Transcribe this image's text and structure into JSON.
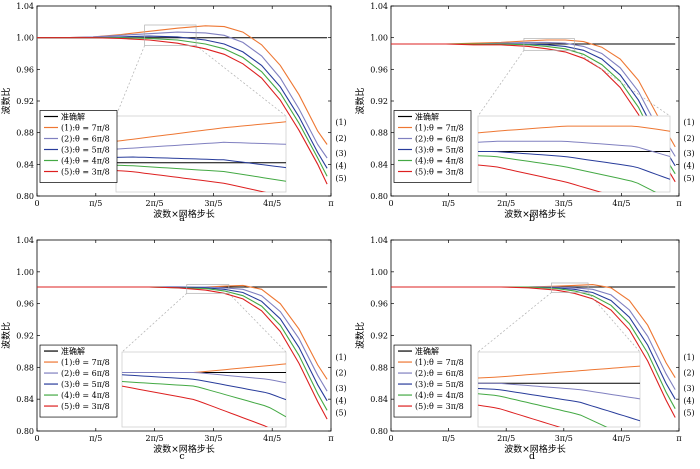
{
  "figure": {
    "curve_names": [
      "准确解",
      "(1):θ = 7π/8",
      "(2):θ = 6π/8",
      "(3):θ = 5π/8",
      "(4):θ = 4π/8",
      "(5):θ = 3π/8"
    ],
    "curve_colors": [
      "#000000",
      "#ee7733",
      "#8080c0",
      "#283c9b",
      "#44a944",
      "#dd2020"
    ],
    "end_labels": [
      "(1)",
      "(2)",
      "(3)",
      "(4)",
      "(5)"
    ]
  },
  "chart_data": [
    {
      "type": "line",
      "panel_label": "a",
      "xlabel": "波数×网格步长",
      "ylabel": "波数比",
      "xlim": [
        0,
        3.14159
      ],
      "ylim": [
        0.8,
        1.04
      ],
      "xtick_values": [
        0,
        0.6283,
        1.2566,
        1.885,
        2.5133,
        3.1416
      ],
      "xtick_labels": [
        "0",
        "π/5",
        "2π/5",
        "3π/5",
        "4π/5",
        "π"
      ],
      "ytick_values": [
        0.8,
        0.84,
        0.88,
        0.92,
        0.96,
        1.0,
        1.04
      ],
      "ytick_labels": [
        "0.80",
        "0.84",
        "0.88",
        "0.92",
        "0.96",
        "1.00",
        "1.04"
      ],
      "x": [
        0,
        0.3,
        0.6,
        0.9,
        1.2,
        1.5,
        1.8,
        2.0,
        2.2,
        2.4,
        2.6,
        2.8,
        3.0,
        3.1
      ],
      "series": [
        {
          "name": "准确解",
          "values": [
            1.0,
            1.0,
            1.0,
            1.0,
            1.0,
            1.0,
            1.0,
            1.0,
            1.0,
            1.0,
            1.0,
            1.0,
            1.0,
            1.0
          ]
        },
        {
          "name": "(1):θ = 7π/8",
          "values": [
            1.0,
            1.0,
            1.001,
            1.004,
            1.008,
            1.012,
            1.015,
            1.014,
            1.007,
            0.991,
            0.965,
            0.928,
            0.882,
            0.865
          ]
        },
        {
          "name": "(2):θ = 6π/8",
          "values": [
            1.0,
            1.0,
            1.001,
            1.003,
            1.005,
            1.007,
            1.006,
            1.003,
            0.994,
            0.977,
            0.949,
            0.91,
            0.865,
            0.848
          ]
        },
        {
          "name": "(3):θ = 5π/8",
          "values": [
            1.0,
            1.0,
            1.0,
            1.001,
            1.002,
            1.001,
            0.997,
            0.992,
            0.982,
            0.965,
            0.938,
            0.9,
            0.855,
            0.835
          ]
        },
        {
          "name": "(4):θ = 4π/8",
          "values": [
            1.0,
            1.0,
            1.0,
            1.0,
            0.999,
            0.997,
            0.992,
            0.986,
            0.975,
            0.957,
            0.93,
            0.892,
            0.848,
            0.825
          ]
        },
        {
          "name": "(5):θ = 3π/8",
          "values": [
            1.0,
            1.0,
            1.0,
            0.999,
            0.997,
            0.993,
            0.986,
            0.979,
            0.967,
            0.949,
            0.921,
            0.883,
            0.84,
            0.815
          ]
        }
      ],
      "inset_xlim": [
        1.15,
        1.7
      ],
      "inset_ylim": [
        0.99,
        1.016
      ]
    },
    {
      "type": "line",
      "panel_label": "b",
      "xlabel": "波数×网格步长",
      "ylabel": "波数比",
      "xlim": [
        0,
        3.14159
      ],
      "ylim": [
        0.8,
        1.04
      ],
      "xtick_values": [
        0,
        0.6283,
        1.2566,
        1.885,
        2.5133,
        3.1416
      ],
      "xtick_labels": [
        "0",
        "π/5",
        "2π/5",
        "3π/5",
        "4π/5",
        "π"
      ],
      "ytick_values": [
        0.8,
        0.84,
        0.88,
        0.92,
        0.96,
        1.0,
        1.04
      ],
      "ytick_labels": [
        "0.80",
        "0.84",
        "0.88",
        "0.92",
        "0.96",
        "1.00",
        "1.04"
      ],
      "x": [
        0,
        0.3,
        0.6,
        0.9,
        1.2,
        1.5,
        1.7,
        1.9,
        2.1,
        2.3,
        2.5,
        2.7,
        2.9,
        3.1
      ],
      "series": [
        {
          "name": "准确解",
          "values": [
            0.992,
            0.992,
            0.992,
            0.992,
            0.992,
            0.992,
            0.992,
            0.992,
            0.992,
            0.992,
            0.992,
            0.992,
            0.992,
            0.992
          ]
        },
        {
          "name": "(1):θ = 7π/8",
          "values": [
            0.992,
            0.992,
            0.992,
            0.993,
            0.994,
            0.996,
            0.997,
            0.997,
            0.995,
            0.988,
            0.973,
            0.946,
            0.903,
            0.862
          ]
        },
        {
          "name": "(2):θ = 6π/8",
          "values": [
            0.992,
            0.992,
            0.992,
            0.992,
            0.993,
            0.994,
            0.994,
            0.993,
            0.989,
            0.98,
            0.962,
            0.932,
            0.888,
            0.85
          ]
        },
        {
          "name": "(3):θ = 5π/8",
          "values": [
            0.992,
            0.992,
            0.992,
            0.992,
            0.992,
            0.992,
            0.991,
            0.989,
            0.984,
            0.973,
            0.953,
            0.921,
            0.876,
            0.838
          ]
        },
        {
          "name": "(4):θ = 4π/8",
          "values": [
            0.992,
            0.992,
            0.992,
            0.992,
            0.992,
            0.991,
            0.989,
            0.986,
            0.979,
            0.966,
            0.945,
            0.912,
            0.866,
            0.828
          ]
        },
        {
          "name": "(5):θ = 3π/8",
          "values": [
            0.992,
            0.992,
            0.992,
            0.991,
            0.991,
            0.989,
            0.986,
            0.982,
            0.974,
            0.96,
            0.937,
            0.903,
            0.857,
            0.818
          ]
        }
      ],
      "inset_xlim": [
        1.45,
        2.0
      ],
      "inset_ylim": [
        0.984,
        0.999
      ]
    },
    {
      "type": "line",
      "panel_label": "c",
      "xlabel": "波数×网格步长",
      "ylabel": "波数比",
      "xlim": [
        0,
        3.14159
      ],
      "ylim": [
        0.8,
        1.04
      ],
      "xtick_values": [
        0,
        0.6283,
        1.2566,
        1.885,
        2.5133,
        3.1416
      ],
      "xtick_labels": [
        "0",
        "π/5",
        "2π/5",
        "3π/5",
        "4π/5",
        "π"
      ],
      "ytick_values": [
        0.8,
        0.84,
        0.88,
        0.92,
        0.96,
        1.0,
        1.04
      ],
      "ytick_labels": [
        "0.80",
        "0.84",
        "0.88",
        "0.92",
        "0.96",
        "1.00",
        "1.04"
      ],
      "x": [
        0,
        0.3,
        0.6,
        0.9,
        1.2,
        1.5,
        1.8,
        2.0,
        2.2,
        2.4,
        2.6,
        2.8,
        3.0,
        3.1
      ],
      "series": [
        {
          "name": "准确解",
          "values": [
            0.981,
            0.981,
            0.981,
            0.981,
            0.981,
            0.981,
            0.981,
            0.981,
            0.981,
            0.981,
            0.981,
            0.981,
            0.981,
            0.981
          ]
        },
        {
          "name": "(1):θ = 7π/8",
          "values": [
            0.981,
            0.981,
            0.981,
            0.981,
            0.981,
            0.981,
            0.981,
            0.982,
            0.983,
            0.978,
            0.96,
            0.928,
            0.883,
            0.865
          ]
        },
        {
          "name": "(2):θ = 6π/8",
          "values": [
            0.981,
            0.981,
            0.981,
            0.981,
            0.981,
            0.981,
            0.981,
            0.98,
            0.978,
            0.97,
            0.95,
            0.916,
            0.87,
            0.85
          ]
        },
        {
          "name": "(3):θ = 5π/8",
          "values": [
            0.981,
            0.981,
            0.981,
            0.981,
            0.981,
            0.981,
            0.98,
            0.978,
            0.974,
            0.963,
            0.941,
            0.905,
            0.858,
            0.838
          ]
        },
        {
          "name": "(4):θ = 4π/8",
          "values": [
            0.981,
            0.981,
            0.981,
            0.981,
            0.981,
            0.98,
            0.979,
            0.976,
            0.97,
            0.957,
            0.933,
            0.895,
            0.847,
            0.826
          ]
        },
        {
          "name": "(5):θ = 3π/8",
          "values": [
            0.981,
            0.981,
            0.981,
            0.981,
            0.981,
            0.98,
            0.977,
            0.973,
            0.966,
            0.951,
            0.925,
            0.885,
            0.837,
            0.815
          ]
        }
      ],
      "inset_xlim": [
        1.6,
        2.05
      ],
      "inset_ylim": [
        0.973,
        0.984
      ]
    },
    {
      "type": "line",
      "panel_label": "d",
      "xlabel": "波数×网格步长",
      "ylabel": "波数比",
      "xlim": [
        0,
        3.14159
      ],
      "ylim": [
        0.8,
        1.04
      ],
      "xtick_values": [
        0,
        0.6283,
        1.2566,
        1.885,
        2.5133,
        3.1416
      ],
      "xtick_labels": [
        "0",
        "π/5",
        "2π/5",
        "3π/5",
        "4π/5",
        "π"
      ],
      "ytick_values": [
        0.8,
        0.84,
        0.88,
        0.92,
        0.96,
        1.0,
        1.04
      ],
      "ytick_labels": [
        "0.80",
        "0.84",
        "0.88",
        "0.92",
        "0.96",
        "1.00",
        "1.04"
      ],
      "x": [
        0,
        0.3,
        0.6,
        0.9,
        1.2,
        1.5,
        1.8,
        2.0,
        2.2,
        2.4,
        2.6,
        2.8,
        3.0,
        3.1
      ],
      "series": [
        {
          "name": "准确解",
          "values": [
            0.981,
            0.981,
            0.981,
            0.981,
            0.981,
            0.981,
            0.981,
            0.981,
            0.981,
            0.981,
            0.981,
            0.981,
            0.981,
            0.981
          ]
        },
        {
          "name": "(1):θ = 7π/8",
          "values": [
            0.981,
            0.981,
            0.981,
            0.981,
            0.981,
            0.981,
            0.982,
            0.983,
            0.984,
            0.98,
            0.964,
            0.933,
            0.886,
            0.867
          ]
        },
        {
          "name": "(2):θ = 6π/8",
          "values": [
            0.981,
            0.981,
            0.981,
            0.981,
            0.981,
            0.981,
            0.981,
            0.98,
            0.978,
            0.971,
            0.952,
            0.919,
            0.872,
            0.852
          ]
        },
        {
          "name": "(3):θ = 5π/8",
          "values": [
            0.981,
            0.981,
            0.981,
            0.981,
            0.981,
            0.981,
            0.98,
            0.978,
            0.974,
            0.964,
            0.943,
            0.908,
            0.86,
            0.84
          ]
        },
        {
          "name": "(4):θ = 4π/8",
          "values": [
            0.981,
            0.981,
            0.981,
            0.981,
            0.981,
            0.981,
            0.979,
            0.976,
            0.97,
            0.958,
            0.935,
            0.898,
            0.849,
            0.828
          ]
        },
        {
          "name": "(5):θ = 3π/8",
          "values": [
            0.981,
            0.981,
            0.981,
            0.981,
            0.981,
            0.98,
            0.977,
            0.973,
            0.966,
            0.952,
            0.927,
            0.888,
            0.839,
            0.817
          ]
        }
      ],
      "inset_xlim": [
        1.75,
        2.15
      ],
      "inset_ylim": [
        0.974,
        0.986
      ]
    }
  ]
}
